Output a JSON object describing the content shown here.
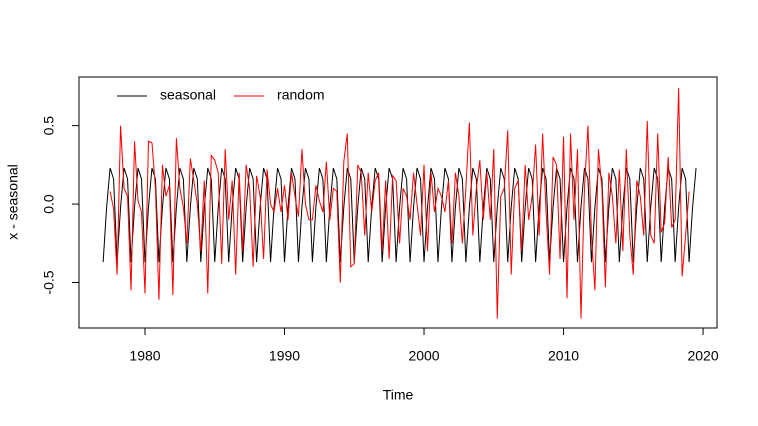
{
  "chart_data": {
    "type": "line",
    "xlabel": "Time",
    "ylabel": "x - seasonal",
    "x": [
      1977,
      1977.25,
      1977.5,
      1977.75,
      1978,
      1978.25,
      1978.5,
      1978.75,
      1979,
      1979.25,
      1979.5,
      1979.75,
      1980,
      1980.25,
      1980.5,
      1980.75,
      1981,
      1981.25,
      1981.5,
      1981.75,
      1982,
      1982.25,
      1982.5,
      1982.75,
      1983,
      1983.25,
      1983.5,
      1983.75,
      1984,
      1984.25,
      1984.5,
      1984.75,
      1985,
      1985.25,
      1985.5,
      1985.75,
      1986,
      1986.25,
      1986.5,
      1986.75,
      1987,
      1987.25,
      1987.5,
      1987.75,
      1988,
      1988.25,
      1988.5,
      1988.75,
      1989,
      1989.25,
      1989.5,
      1989.75,
      1990,
      1990.25,
      1990.5,
      1990.75,
      1991,
      1991.25,
      1991.5,
      1991.75,
      1992,
      1992.25,
      1992.5,
      1992.75,
      1993,
      1993.25,
      1993.5,
      1993.75,
      1994,
      1994.25,
      1994.5,
      1994.75,
      1995,
      1995.25,
      1995.5,
      1995.75,
      1996,
      1996.25,
      1996.5,
      1996.75,
      1997,
      1997.25,
      1997.5,
      1997.75,
      1998,
      1998.25,
      1998.5,
      1998.75,
      1999,
      1999.25,
      1999.5,
      1999.75,
      2000,
      2000.25,
      2000.5,
      2000.75,
      2001,
      2001.25,
      2001.5,
      2001.75,
      2002,
      2002.25,
      2002.5,
      2002.75,
      2003,
      2003.25,
      2003.5,
      2003.75,
      2004,
      2004.25,
      2004.5,
      2004.75,
      2005,
      2005.25,
      2005.5,
      2005.75,
      2006,
      2006.25,
      2006.5,
      2006.75,
      2007,
      2007.25,
      2007.5,
      2007.75,
      2008,
      2008.25,
      2008.5,
      2008.75,
      2009,
      2009.25,
      2009.5,
      2009.75,
      2010,
      2010.25,
      2010.5,
      2010.75,
      2011,
      2011.25,
      2011.5,
      2011.75,
      2012,
      2012.25,
      2012.5,
      2012.75,
      2013,
      2013.25,
      2013.5,
      2013.75,
      2014,
      2014.25,
      2014.5,
      2014.75,
      2015,
      2015.25,
      2015.5,
      2015.75,
      2016,
      2016.25,
      2016.5,
      2016.75,
      2017,
      2017.25,
      2017.5,
      2017.75,
      2018,
      2018.25,
      2018.5,
      2018.75,
      2019,
      2019.25,
      2019.5
    ],
    "series": [
      {
        "name": "seasonal",
        "color": "#000000",
        "values": [
          -0.37,
          -0.02,
          0.23,
          0.16,
          -0.37,
          -0.02,
          0.23,
          0.16,
          -0.37,
          -0.02,
          0.23,
          0.16,
          -0.37,
          -0.02,
          0.23,
          0.16,
          -0.37,
          -0.02,
          0.23,
          0.16,
          -0.37,
          -0.02,
          0.23,
          0.16,
          -0.37,
          -0.02,
          0.23,
          0.16,
          -0.37,
          -0.02,
          0.23,
          0.16,
          -0.37,
          -0.02,
          0.23,
          0.16,
          -0.37,
          -0.02,
          0.23,
          0.16,
          -0.37,
          -0.02,
          0.23,
          0.16,
          -0.37,
          -0.02,
          0.23,
          0.16,
          -0.37,
          -0.02,
          0.23,
          0.16,
          -0.37,
          -0.02,
          0.23,
          0.16,
          -0.37,
          -0.02,
          0.23,
          0.16,
          -0.37,
          -0.02,
          0.23,
          0.16,
          -0.37,
          -0.02,
          0.23,
          0.16,
          -0.37,
          -0.02,
          0.23,
          0.16,
          -0.37,
          -0.02,
          0.23,
          0.16,
          -0.37,
          -0.02,
          0.23,
          0.16,
          -0.37,
          -0.02,
          0.23,
          0.16,
          -0.37,
          -0.02,
          0.23,
          0.16,
          -0.37,
          -0.02,
          0.23,
          0.16,
          -0.37,
          -0.02,
          0.23,
          0.16,
          -0.37,
          -0.02,
          0.23,
          0.16,
          -0.37,
          -0.02,
          0.23,
          0.16,
          -0.37,
          -0.02,
          0.23,
          0.16,
          -0.37,
          -0.02,
          0.23,
          0.16,
          -0.37,
          -0.02,
          0.23,
          0.16,
          -0.37,
          -0.02,
          0.23,
          0.16,
          -0.37,
          -0.02,
          0.23,
          0.16,
          -0.37,
          -0.02,
          0.23,
          0.16,
          -0.37,
          -0.02,
          0.23,
          0.16,
          -0.37,
          -0.02,
          0.23,
          0.16,
          -0.37,
          -0.02,
          0.23,
          0.16,
          -0.37,
          -0.02,
          0.23,
          0.16,
          -0.37,
          -0.02,
          0.23,
          0.16,
          -0.37,
          -0.02,
          0.23,
          0.16,
          -0.37,
          -0.02,
          0.23,
          0.16,
          -0.37,
          -0.02,
          0.23,
          0.16,
          -0.37,
          -0.02,
          0.23,
          0.16,
          -0.37,
          -0.02,
          0.23,
          0.16,
          -0.37,
          -0.02,
          0.23
        ]
      },
      {
        "name": "random",
        "color": "#ff0000",
        "values": [
          null,
          null,
          0.08,
          -0.03,
          -0.45,
          0.5,
          0.1,
          0.05,
          -0.55,
          0.4,
          0.02,
          -0.05,
          -0.57,
          0.4,
          0.39,
          0.1,
          -0.61,
          0.25,
          0.05,
          0.12,
          -0.58,
          0.42,
          0.1,
          -0.02,
          -0.25,
          0.29,
          0.15,
          0.0,
          -0.3,
          0.15,
          -0.57,
          0.31,
          0.28,
          0.2,
          -0.38,
          0.35,
          -0.1,
          0.15,
          -0.45,
          0.2,
          -0.3,
          0.25,
          0.1,
          -0.4,
          0.18,
          0.05,
          -0.35,
          0.22,
          0.0,
          -0.05,
          0.1,
          -0.05,
          0.12,
          -0.1,
          0.2,
          0.05,
          -0.08,
          0.35,
          0.0,
          -0.1,
          -0.1,
          0.12,
          0.02,
          -0.05,
          0.27,
          -0.1,
          0.1,
          0.08,
          -0.5,
          0.27,
          0.45,
          -0.4,
          -0.38,
          0.25,
          0.2,
          -0.2,
          0.2,
          -0.05,
          0.15,
          0.2,
          -0.3,
          0.15,
          -0.35,
          0.18,
          0.15,
          -0.25,
          0.1,
          0.05,
          -0.1,
          0.2,
          0.0,
          -0.2,
          0.25,
          -0.3,
          0.2,
          -0.05,
          0.1,
          0.05,
          -0.05,
          0.15,
          -0.25,
          0.2,
          0.05,
          -0.25,
          0.1,
          0.52,
          -0.2,
          0.1,
          0.28,
          -0.1,
          0.2,
          -0.1,
          0.35,
          -0.73,
          0.05,
          0.1,
          0.47,
          -0.45,
          0.1,
          0.15,
          -0.3,
          0.25,
          -0.1,
          0.05,
          0.38,
          -0.2,
          0.45,
          -0.05,
          -0.45,
          0.3,
          0.25,
          -0.35,
          0.43,
          -0.6,
          0.45,
          -0.1,
          0.35,
          -0.73,
          0.1,
          0.5,
          -0.2,
          -0.55,
          0.35,
          0.1,
          -0.53,
          0.2,
          0.05,
          -0.25,
          0.22,
          -0.3,
          0.35,
          -0.2,
          -0.45,
          0.15,
          0.05,
          -0.2,
          0.53,
          -0.2,
          -0.25,
          0.45,
          -0.18,
          -0.12,
          0.3,
          -0.15,
          -0.1,
          0.74,
          -0.46,
          -0.2,
          0.08,
          null,
          null
        ]
      }
    ],
    "xlim": [
      1975.27,
      2021.0
    ],
    "xticks": [
      1980,
      1990,
      2000,
      2010,
      2020
    ],
    "ylim": [
      -0.79,
      0.81
    ],
    "yticks": [
      -0.5,
      {
        "value": 0,
        "label": "0.0"
      },
      0.5
    ],
    "legend": "top-left"
  }
}
